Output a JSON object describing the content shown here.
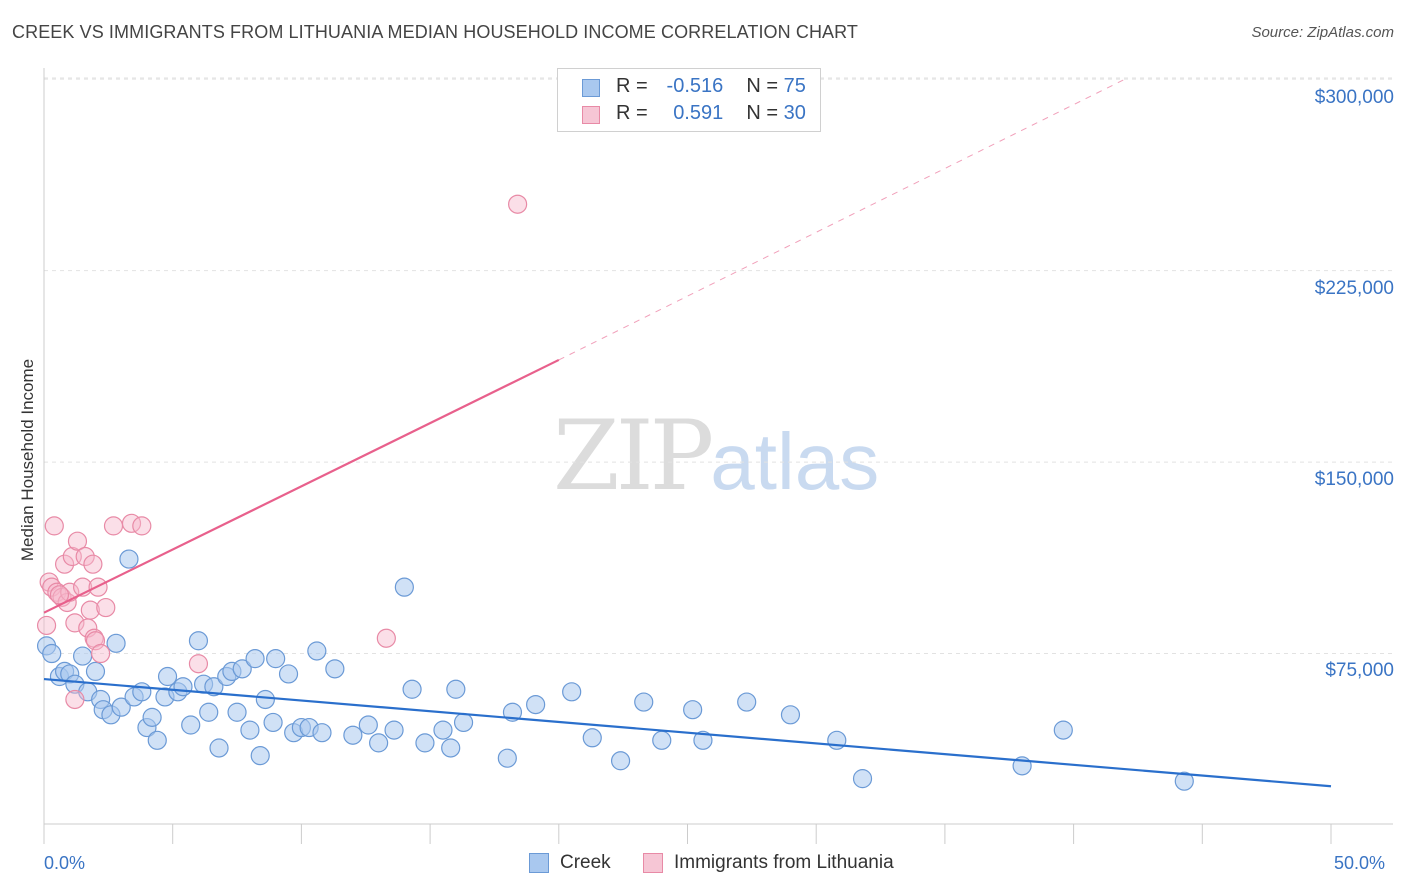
{
  "title": "CREEK VS IMMIGRANTS FROM LITHUANIA MEDIAN HOUSEHOLD INCOME CORRELATION CHART",
  "source": "Source: ZipAtlas.com",
  "watermark": {
    "zip": "ZIP",
    "atlas": "atlas"
  },
  "legend": {
    "rows": [
      {
        "r_label": "R =",
        "r_value": "-0.516",
        "n_label": "N =",
        "n_value": "75"
      },
      {
        "r_label": "R =",
        "r_value": "0.591",
        "n_label": "N =",
        "n_value": "30"
      }
    ]
  },
  "bottom_legend": {
    "creek": "Creek",
    "lithuania": "Immigrants from Lithuania"
  },
  "colors": {
    "creek_fill": "#a9c8ef",
    "creek_stroke": "#6b9ad6",
    "creek_line": "#2a6fcc",
    "lith_fill": "#f6b9cb",
    "lith_stroke": "#e88aa6",
    "lith_line": "#e8608c",
    "grid": "#e2e2e2",
    "axis_text": "#3a74c4"
  },
  "chart_data": {
    "type": "scatter",
    "title": "CREEK VS IMMIGRANTS FROM LITHUANIA MEDIAN HOUSEHOLD INCOME CORRELATION CHART",
    "xlabel": "",
    "ylabel": "Median Household Income",
    "xlim": [
      0,
      50
    ],
    "ylim": [
      0,
      315000
    ],
    "x_tick_labels": [
      "0.0%",
      "50.0%"
    ],
    "y_ticks": [
      75000,
      150000,
      225000,
      300000
    ],
    "y_tick_labels": [
      "$75,000",
      "$150,000",
      "$225,000",
      "$300,000"
    ],
    "grid": true,
    "series": [
      {
        "name": "Creek",
        "r": -0.516,
        "n": 75,
        "trend": {
          "x0": 0,
          "y0": 65000,
          "x1": 50,
          "y1": 23000
        },
        "points": [
          [
            0.1,
            78000
          ],
          [
            0.3,
            75000
          ],
          [
            0.6,
            66000
          ],
          [
            0.8,
            68000
          ],
          [
            1.0,
            67000
          ],
          [
            1.2,
            63000
          ],
          [
            1.5,
            74000
          ],
          [
            1.7,
            60000
          ],
          [
            2.0,
            68000
          ],
          [
            2.2,
            57000
          ],
          [
            2.3,
            53000
          ],
          [
            2.6,
            51000
          ],
          [
            2.8,
            79000
          ],
          [
            3.0,
            54000
          ],
          [
            3.3,
            112000
          ],
          [
            3.5,
            58000
          ],
          [
            3.8,
            60000
          ],
          [
            4.0,
            46000
          ],
          [
            4.2,
            50000
          ],
          [
            4.4,
            41000
          ],
          [
            4.7,
            58000
          ],
          [
            4.8,
            66000
          ],
          [
            5.2,
            60000
          ],
          [
            5.4,
            62000
          ],
          [
            5.7,
            47000
          ],
          [
            6.0,
            80000
          ],
          [
            6.2,
            63000
          ],
          [
            6.4,
            52000
          ],
          [
            6.6,
            62000
          ],
          [
            6.8,
            38000
          ],
          [
            7.1,
            66000
          ],
          [
            7.3,
            68000
          ],
          [
            7.5,
            52000
          ],
          [
            7.7,
            69000
          ],
          [
            8.0,
            45000
          ],
          [
            8.2,
            73000
          ],
          [
            8.4,
            35000
          ],
          [
            8.6,
            57000
          ],
          [
            8.9,
            48000
          ],
          [
            9.0,
            73000
          ],
          [
            9.5,
            67000
          ],
          [
            9.7,
            44000
          ],
          [
            10.0,
            46000
          ],
          [
            10.3,
            46000
          ],
          [
            10.6,
            76000
          ],
          [
            10.8,
            44000
          ],
          [
            11.3,
            69000
          ],
          [
            12.0,
            43000
          ],
          [
            12.6,
            47000
          ],
          [
            13.0,
            40000
          ],
          [
            13.6,
            45000
          ],
          [
            14.0,
            101000
          ],
          [
            14.3,
            61000
          ],
          [
            14.8,
            40000
          ],
          [
            15.5,
            45000
          ],
          [
            15.8,
            38000
          ],
          [
            16.0,
            61000
          ],
          [
            16.3,
            48000
          ],
          [
            18.0,
            34000
          ],
          [
            18.2,
            52000
          ],
          [
            19.1,
            55000
          ],
          [
            20.5,
            60000
          ],
          [
            21.3,
            42000
          ],
          [
            22.4,
            33000
          ],
          [
            23.3,
            56000
          ],
          [
            24.0,
            41000
          ],
          [
            25.2,
            53000
          ],
          [
            25.6,
            41000
          ],
          [
            27.3,
            56000
          ],
          [
            29.0,
            51000
          ],
          [
            30.8,
            41000
          ],
          [
            31.8,
            26000
          ],
          [
            38.0,
            31000
          ],
          [
            39.6,
            45000
          ],
          [
            44.3,
            25000
          ]
        ]
      },
      {
        "name": "Immigrants from Lithuania",
        "r": 0.591,
        "n": 30,
        "trend": {
          "x0": 0,
          "y0": 91000,
          "x1": 20,
          "y1": 190000,
          "dashed_x1": 42,
          "dashed_y1": 300000
        },
        "points": [
          [
            0.1,
            86000
          ],
          [
            0.2,
            103000
          ],
          [
            0.3,
            101000
          ],
          [
            0.4,
            125000
          ],
          [
            0.5,
            99000
          ],
          [
            0.7,
            97000
          ],
          [
            0.8,
            110000
          ],
          [
            0.9,
            95000
          ],
          [
            1.0,
            99000
          ],
          [
            1.1,
            113000
          ],
          [
            1.2,
            87000
          ],
          [
            1.3,
            119000
          ],
          [
            1.5,
            101000
          ],
          [
            1.6,
            113000
          ],
          [
            1.7,
            85000
          ],
          [
            1.8,
            92000
          ],
          [
            1.9,
            110000
          ],
          [
            1.95,
            81000
          ],
          [
            2.0,
            80000
          ],
          [
            2.1,
            101000
          ],
          [
            2.2,
            75000
          ],
          [
            2.4,
            93000
          ],
          [
            2.7,
            125000
          ],
          [
            3.4,
            126000
          ],
          [
            3.8,
            125000
          ],
          [
            6.0,
            71000
          ],
          [
            1.2,
            57000
          ],
          [
            13.3,
            81000
          ],
          [
            18.4,
            251000
          ],
          [
            0.6,
            98000
          ]
        ]
      }
    ]
  }
}
